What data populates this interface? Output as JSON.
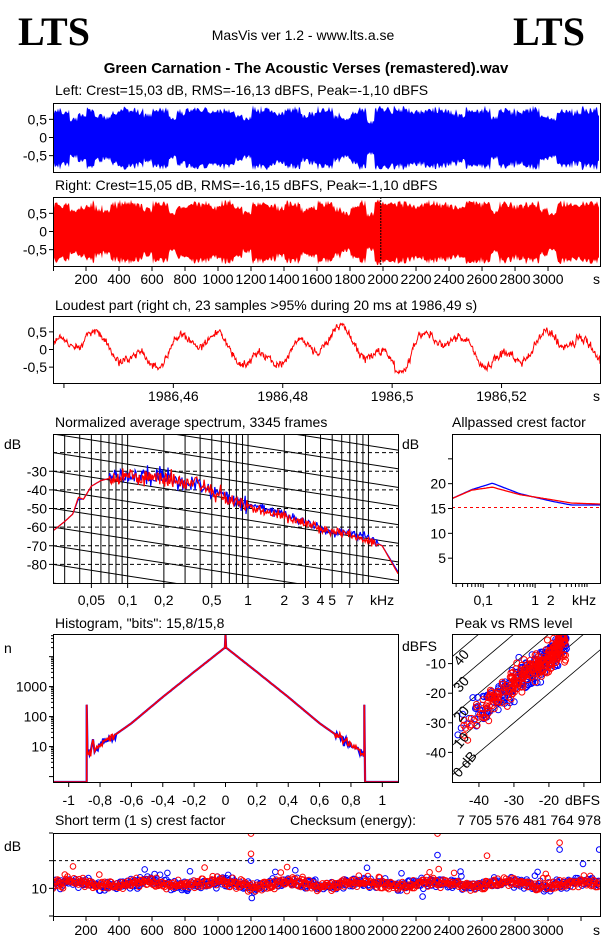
{
  "header": {
    "logo_left": "LTS",
    "logo_right": "LTS",
    "app": "MasVis ver 1.2 - www.lts.a.se",
    "file_title": "Green Carnation - The Acoustic Verses (remastered).wav"
  },
  "colors": {
    "left": "#0000ff",
    "right": "#ff0000",
    "axis": "#000000"
  },
  "chart_data": [
    {
      "type": "area",
      "title": "Left: Crest=15,03 dB, RMS=-16,13 dBFS, Peak=-1,10 dBFS",
      "xlim": [
        0,
        3315
      ],
      "ylim": [
        -0.95,
        0.95
      ],
      "yticks": {
        "values": [
          0.5,
          0,
          -0.5
        ],
        "labels": [
          "0,5",
          "0",
          "-0,5"
        ]
      },
      "envelope_step_s": 50,
      "envelope": [
        0.9,
        0.85,
        0.6,
        0.75,
        0.9,
        0.7,
        0.65,
        0.8,
        0.9,
        0.9,
        0.85,
        0.7,
        0.9,
        0.9,
        0.6,
        0.8,
        0.85,
        0.9,
        0.9,
        0.8,
        0.9,
        0.9,
        0.7,
        0.6,
        0.9,
        0.9,
        0.85,
        0.75,
        0.9,
        0.9,
        0.7,
        0.8,
        0.9,
        0.9,
        0.7,
        0.6,
        0.8,
        0.9,
        0.5,
        0.9,
        0.9,
        0.9,
        0.9,
        0.85,
        0.8,
        0.9,
        0.9,
        0.85,
        0.8,
        0.75,
        0.9,
        0.9,
        0.9,
        0.65,
        0.9,
        0.85,
        0.8,
        0.9,
        0.9,
        0.7,
        0.6,
        0.9,
        0.85,
        0.8,
        0.9,
        0.9,
        0.7
      ]
    },
    {
      "type": "area",
      "title": "Right: Crest=15,05 dB, RMS=-16,15 dBFS, Peak=-1,10 dBFS",
      "xlim": [
        0,
        3315
      ],
      "ylim": [
        -0.95,
        0.95
      ],
      "yticks": {
        "values": [
          0.5,
          0,
          -0.5
        ],
        "labels": [
          "0,5",
          "0",
          "-0,5"
        ]
      },
      "xticks": {
        "values": [
          200,
          400,
          600,
          800,
          1000,
          1200,
          1400,
          1600,
          1800,
          2000,
          2200,
          2400,
          2600,
          2800,
          3000
        ],
        "labels": [
          "200",
          "400",
          "600",
          "800",
          "1000",
          "1200",
          "1400",
          "1600",
          "1800",
          "2000",
          "2200",
          "2400",
          "2600",
          "2800",
          "3000"
        ]
      },
      "xunit": "s",
      "marker_s": 1986.49,
      "envelope_step_s": 50,
      "envelope": [
        0.9,
        0.85,
        0.65,
        0.75,
        0.9,
        0.75,
        0.65,
        0.85,
        0.9,
        0.9,
        0.85,
        0.7,
        0.9,
        0.9,
        0.6,
        0.8,
        0.85,
        0.9,
        0.9,
        0.8,
        0.9,
        0.9,
        0.75,
        0.6,
        0.9,
        0.9,
        0.85,
        0.75,
        0.9,
        0.9,
        0.7,
        0.8,
        0.9,
        0.9,
        0.75,
        0.6,
        0.8,
        0.9,
        0.55,
        0.95,
        0.9,
        0.9,
        0.9,
        0.85,
        0.8,
        0.9,
        0.9,
        0.85,
        0.8,
        0.75,
        0.9,
        0.9,
        0.9,
        0.65,
        0.9,
        0.85,
        0.8,
        0.9,
        0.9,
        0.7,
        0.6,
        0.9,
        0.85,
        0.8,
        0.9,
        0.9,
        0.75
      ]
    },
    {
      "type": "line",
      "title": "Loudest part (right ch, 23 samples >95% during 20 ms at 1986,49 s)",
      "xlim": [
        1986.438,
        1986.538
      ],
      "ylim": [
        -0.95,
        0.95
      ],
      "yticks": {
        "values": [
          0.5,
          0,
          -0.5
        ],
        "labels": [
          "0,5",
          "0",
          "-0,5"
        ]
      },
      "xticks": {
        "values": [
          1986.46,
          1986.48,
          1986.5,
          1986.52
        ],
        "labels": [
          "1986,46",
          "1986,48",
          "1986,5",
          "1986,52"
        ]
      },
      "minor_xticks": [
        1986.44
      ],
      "xunit": "s"
    },
    {
      "type": "line",
      "title": "Normalized average spectrum, 3345 frames",
      "yunit": "dB",
      "xunit": "kHz",
      "xscale": "log",
      "xlim": [
        0.024,
        17.6
      ],
      "ylim": [
        -90,
        -10
      ],
      "yticks": {
        "values": [
          -30,
          -40,
          -50,
          -60,
          -70,
          -80
        ],
        "labels": [
          "-30",
          "-40",
          "-50",
          "-60",
          "-70",
          "-80"
        ]
      },
      "xticks": {
        "values": [
          0.05,
          0.1,
          0.2,
          0.5,
          1,
          2,
          3,
          4,
          5,
          7
        ],
        "labels": [
          "0,05",
          "0,1",
          "0,2",
          "0,5",
          "1",
          "2",
          "3",
          "4",
          "5",
          "7"
        ]
      },
      "grid_dashed_db": [
        -20,
        -30,
        -40,
        -50,
        -60,
        -70,
        -80
      ],
      "series": [
        {
          "name": "left",
          "points": [
            [
              0.024,
              -62
            ],
            [
              0.03,
              -57
            ],
            [
              0.035,
              -53
            ],
            [
              0.039,
              -45
            ],
            [
              0.043,
              -45
            ],
            [
              0.05,
              -38
            ],
            [
              0.06,
              -35
            ],
            [
              0.08,
              -33
            ],
            [
              0.1,
              -32
            ],
            [
              0.2,
              -33
            ],
            [
              0.3,
              -36
            ],
            [
              0.5,
              -40
            ],
            [
              0.7,
              -45
            ],
            [
              1,
              -48
            ],
            [
              2,
              -53
            ],
            [
              3,
              -57
            ],
            [
              4,
              -61
            ],
            [
              5,
              -63
            ],
            [
              7,
              -63
            ],
            [
              10,
              -66
            ],
            [
              13,
              -70
            ],
            [
              17.6,
              -84
            ]
          ]
        },
        {
          "name": "right",
          "points": [
            [
              0.024,
              -62
            ],
            [
              0.03,
              -57
            ],
            [
              0.035,
              -53
            ],
            [
              0.039,
              -44
            ],
            [
              0.043,
              -45
            ],
            [
              0.05,
              -38
            ],
            [
              0.06,
              -35
            ],
            [
              0.08,
              -33
            ],
            [
              0.1,
              -32
            ],
            [
              0.2,
              -33
            ],
            [
              0.3,
              -36
            ],
            [
              0.5,
              -40
            ],
            [
              0.7,
              -45
            ],
            [
              1,
              -49
            ],
            [
              2,
              -54
            ],
            [
              3,
              -58
            ],
            [
              4,
              -61
            ],
            [
              5,
              -63
            ],
            [
              7,
              -64
            ],
            [
              10,
              -67
            ],
            [
              13,
              -70
            ],
            [
              17.6,
              -85
            ]
          ]
        }
      ]
    },
    {
      "type": "line",
      "title": "Allpassed crest factor",
      "yunit": "dB",
      "xunit": "kHz",
      "xscale": "log",
      "xlim": [
        0.025,
        17.8
      ],
      "ylim": [
        0,
        30
      ],
      "yticks": {
        "values": [
          20,
          15,
          10,
          5
        ],
        "labels": [
          "20",
          "15",
          "10",
          "5"
        ]
      },
      "xticks": {
        "values": [
          0.1,
          1,
          2
        ],
        "labels": [
          "0,1",
          "1",
          "2"
        ]
      },
      "reference_db": 15.2,
      "series": [
        {
          "name": "left",
          "points": [
            [
              0.025,
              17
            ],
            [
              0.06,
              18.8
            ],
            [
              0.15,
              20.1
            ],
            [
              0.5,
              18
            ],
            [
              2,
              16.5
            ],
            [
              5,
              15.7
            ],
            [
              17.8,
              15.7
            ]
          ]
        },
        {
          "name": "right",
          "points": [
            [
              0.025,
              17
            ],
            [
              0.06,
              18.7
            ],
            [
              0.15,
              19.3
            ],
            [
              0.5,
              17.8
            ],
            [
              2,
              16.8
            ],
            [
              5,
              16.1
            ],
            [
              17.8,
              15.9
            ]
          ]
        }
      ]
    },
    {
      "type": "line",
      "title": "Histogram, \"bits\": 15,8/15,8",
      "yunit": "n",
      "yscale": "log",
      "xlim": [
        -1.1,
        1.1
      ],
      "ylim": [
        0.66,
        57000
      ],
      "yticks": {
        "values": [
          1000,
          100,
          10
        ],
        "labels": [
          "1000",
          "100",
          "10"
        ]
      },
      "xticks": {
        "values": [
          -1,
          -0.8,
          -0.6,
          -0.4,
          -0.2,
          0,
          0.2,
          0.4,
          0.6,
          0.8,
          1
        ],
        "labels": [
          "-1",
          "-0,8",
          "-0,6",
          "-0,4",
          "-0,2",
          "0",
          "0,2",
          "0,4",
          "0,6",
          "0,8",
          "1"
        ]
      },
      "points": [
        [
          -1.1,
          0.66
        ],
        [
          -0.885,
          0.66
        ],
        [
          -0.885,
          250
        ],
        [
          -0.88,
          6
        ],
        [
          -0.86,
          6
        ],
        [
          -0.845,
          20
        ],
        [
          -0.835,
          7
        ],
        [
          -0.8,
          11
        ],
        [
          -0.6,
          60
        ],
        [
          -0.4,
          450
        ],
        [
          -0.2,
          3100
        ],
        [
          -0.1,
          8000
        ],
        [
          -0.004,
          20000
        ],
        [
          0,
          57000
        ],
        [
          0.004,
          20000
        ],
        [
          0.1,
          8000
        ],
        [
          0.2,
          3100
        ],
        [
          0.4,
          450
        ],
        [
          0.6,
          60
        ],
        [
          0.8,
          11
        ],
        [
          0.85,
          8
        ],
        [
          0.875,
          5
        ],
        [
          0.885,
          5
        ],
        [
          0.885,
          250
        ],
        [
          0.89,
          0.66
        ],
        [
          1.1,
          0.66
        ]
      ]
    },
    {
      "type": "scatter",
      "title": "Peak vs RMS level",
      "xunit": "dBFS",
      "yunit": "dBFS",
      "xlim": [
        -47.7,
        -5.4
      ],
      "ylim": [
        -50,
        0
      ],
      "yticks": {
        "values": [
          -10,
          -20,
          -30,
          -40
        ],
        "labels": [
          "-10",
          "-20",
          "-30",
          "-40"
        ]
      },
      "xticks": {
        "values": [
          -40,
          -30,
          -20
        ],
        "labels": [
          "-40",
          "-30",
          "-20"
        ]
      },
      "crest_lines": {
        "values": [
          0,
          10,
          20,
          30,
          40
        ],
        "labels": [
          "0 dB",
          "10",
          "20",
          "30",
          "40"
        ]
      },
      "rms_range": [
        -47,
        -15
      ],
      "mean_crest_db": 13.5,
      "max_peak": -1.1
    },
    {
      "type": "scatter",
      "title": "Short term (1 s) crest factor",
      "checksum_label": "Checksum (energy):",
      "checksum_value": "7 705 576 481 764 978",
      "yunit": "dB",
      "xunit": "s",
      "xlim": [
        0,
        3315
      ],
      "ylim": [
        0,
        30
      ],
      "yticks": {
        "values": [
          10
        ],
        "labels": [
          "10"
        ]
      },
      "dashed_db": 20,
      "xticks": {
        "values": [
          200,
          400,
          600,
          800,
          1000,
          1200,
          1400,
          1600,
          1800,
          2000,
          2200,
          2400,
          2600,
          2800,
          3000
        ],
        "labels": [
          "200",
          "400",
          "600",
          "800",
          "1000",
          "1200",
          "1400",
          "1600",
          "1800",
          "2000",
          "2200",
          "2400",
          "2600",
          "2800",
          "3000"
        ]
      },
      "typical_range_db": [
        9.5,
        14
      ],
      "outliers": [
        [
          1200,
          29.8,
          "right"
        ],
        [
          1200,
          22.5,
          "right"
        ],
        [
          1200,
          20,
          "left"
        ],
        [
          2330,
          29.8,
          "right"
        ],
        [
          2330,
          22,
          "left"
        ],
        [
          3070,
          26.5,
          "right"
        ],
        [
          3070,
          24,
          "left"
        ],
        [
          2630,
          21.8,
          "right"
        ],
        [
          3310,
          24,
          "left"
        ],
        [
          1205,
          6.5,
          "left"
        ],
        [
          2240,
          7,
          "left"
        ]
      ]
    }
  ]
}
